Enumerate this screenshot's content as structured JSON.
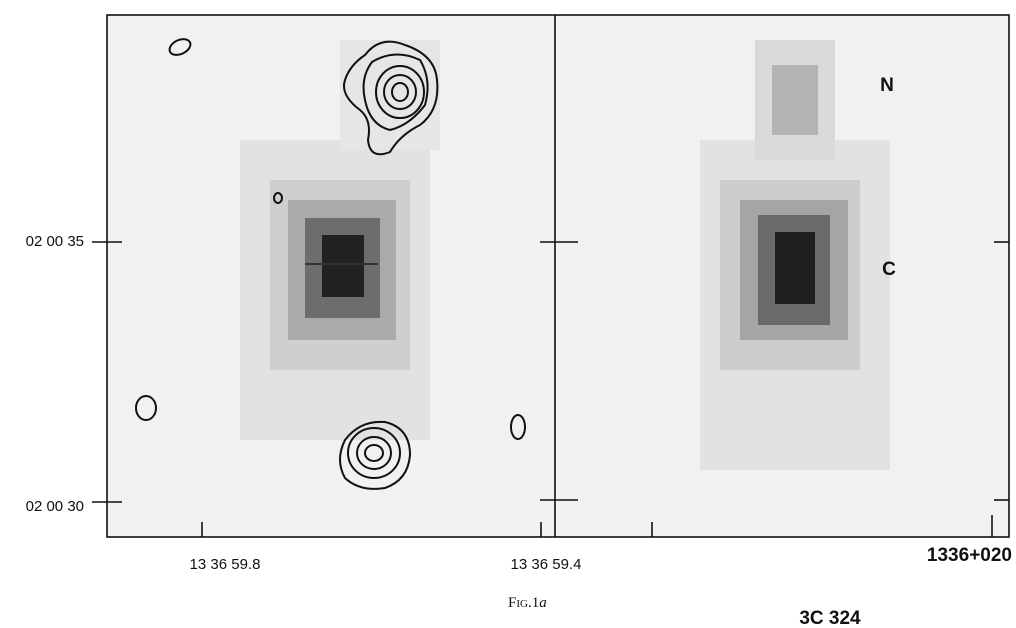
{
  "figure": {
    "y_labels": [
      "02 00 35",
      "02 00 30"
    ],
    "x_labels": [
      "13 36 59.8",
      "13 36 59.4"
    ],
    "markers": [
      "N",
      "C"
    ],
    "source": "1336+020",
    "caption": "Fig.1",
    "panel": "a",
    "name": "3C 324"
  }
}
